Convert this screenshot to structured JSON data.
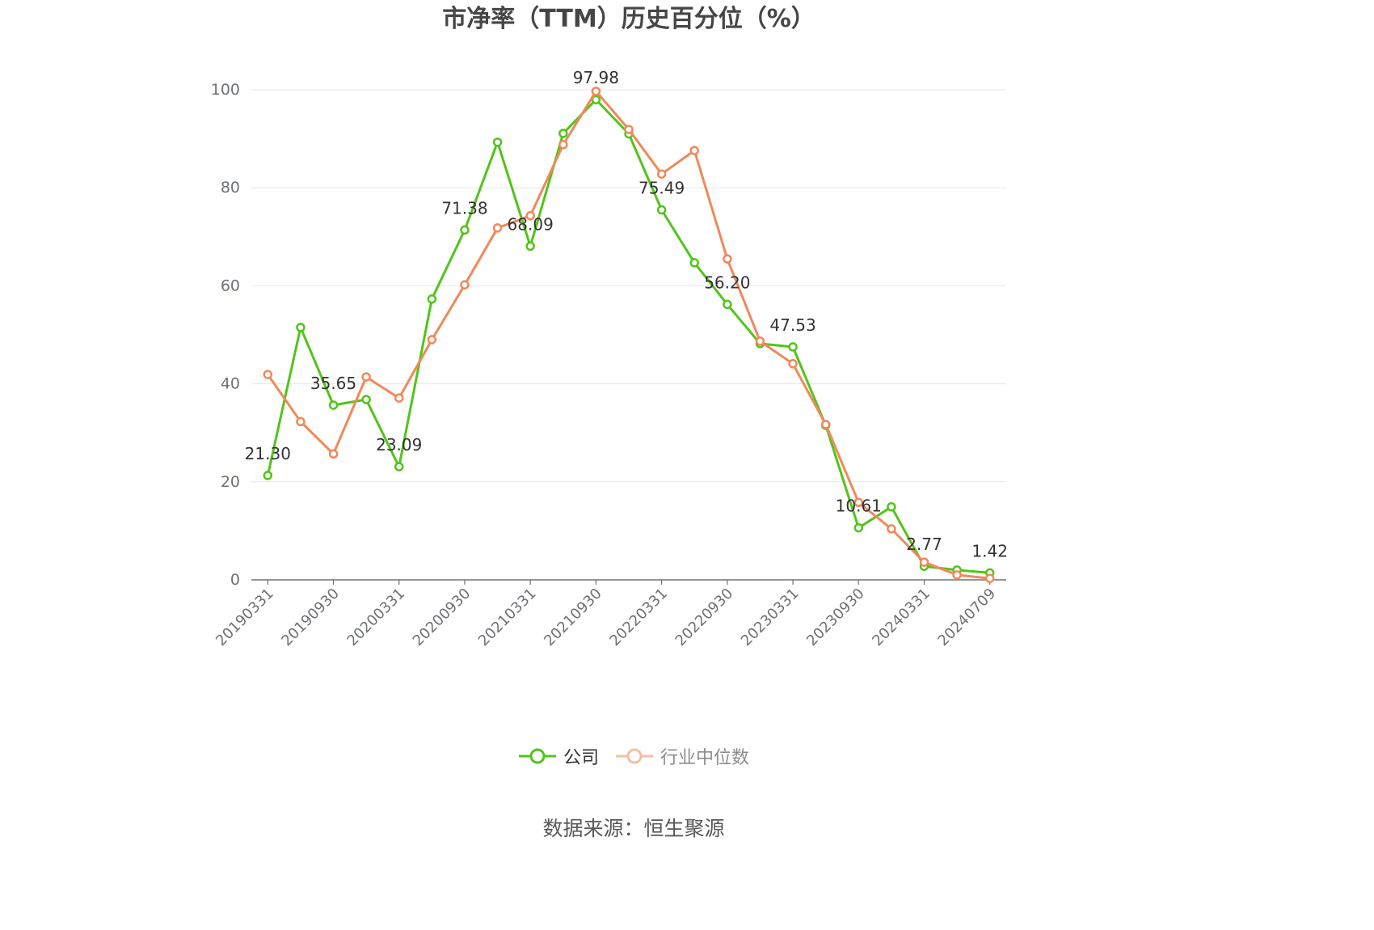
{
  "chart_data": {
    "type": "line",
    "title": "市净率（TTM）历史百分位（%）",
    "categories": [
      "20190331",
      "",
      "20190930",
      "",
      "20200331",
      "",
      "20200930",
      "",
      "20210331",
      "",
      "20210930",
      "",
      "20220331",
      "",
      "20220930",
      "",
      "20230331",
      "",
      "20230930",
      "",
      "20240331",
      "",
      "20240709"
    ],
    "series": [
      {
        "name": "公司",
        "color": "#52c41a",
        "values": [
          21.3,
          51.5,
          35.65,
          36.8,
          23.09,
          57.3,
          71.38,
          89.3,
          68.09,
          91.1,
          97.98,
          91.0,
          75.49,
          64.7,
          56.2,
          48.2,
          47.53,
          31.5,
          10.61,
          14.9,
          2.77,
          2.0,
          1.42
        ],
        "data_labels": [
          "21.30",
          "",
          "35.65",
          "",
          "23.09",
          "",
          "71.38",
          "",
          "68.09",
          "",
          "97.98",
          "",
          "75.49",
          "",
          "56.20",
          "",
          "47.53",
          "",
          "10.61",
          "",
          "2.77",
          "",
          "1.42"
        ]
      },
      {
        "name": "行业中位数",
        "color": "#f0895a",
        "values": [
          41.9,
          32.3,
          25.7,
          41.4,
          37.1,
          49.0,
          60.2,
          71.8,
          74.3,
          88.8,
          99.7,
          91.9,
          82.8,
          87.6,
          65.5,
          48.7,
          44.1,
          31.7,
          15.8,
          10.4,
          3.6,
          1.0,
          0.3
        ]
      }
    ],
    "ylim": [
      0,
      100
    ],
    "y_ticks": [
      0,
      20,
      40,
      60,
      80,
      100
    ],
    "grid": true,
    "legend_position": "bottom"
  },
  "source": "数据来源：恒生聚源"
}
